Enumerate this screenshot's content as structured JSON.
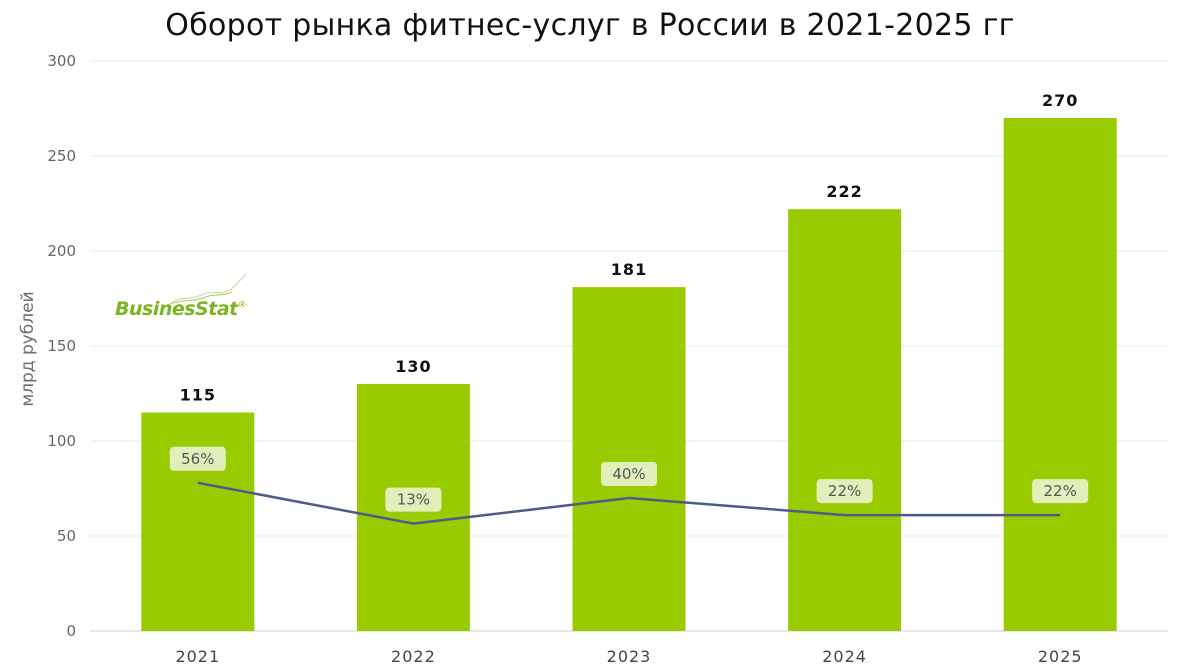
{
  "chart_data": {
    "type": "bar",
    "title": "Оборот рынка фитнес-услуг в России в 2021-2025 гг",
    "ylabel": "млрд рублей",
    "xlabel": "",
    "ylim": [
      0,
      300
    ],
    "yticks": [
      0,
      50,
      100,
      150,
      200,
      250,
      300
    ],
    "categories": [
      "2021",
      "2022",
      "2023",
      "2024",
      "2025"
    ],
    "series": [
      {
        "type": "bar",
        "values": [
          115,
          130,
          181,
          222,
          270
        ],
        "labels": [
          "115",
          "130",
          "181",
          "222",
          "270"
        ]
      },
      {
        "type": "line",
        "values": [
          56,
          13,
          40,
          22,
          22
        ],
        "labels": [
          "56%",
          "13%",
          "40%",
          "22%",
          "22%"
        ]
      }
    ],
    "grid": true,
    "colors": {
      "bar": "#99cc00",
      "line": "#4f5a8c",
      "label_bg": "#e6f0c4",
      "grid": "#e8e8e8"
    }
  },
  "logo": {
    "text": "BusinesStat",
    "mark": "®"
  }
}
